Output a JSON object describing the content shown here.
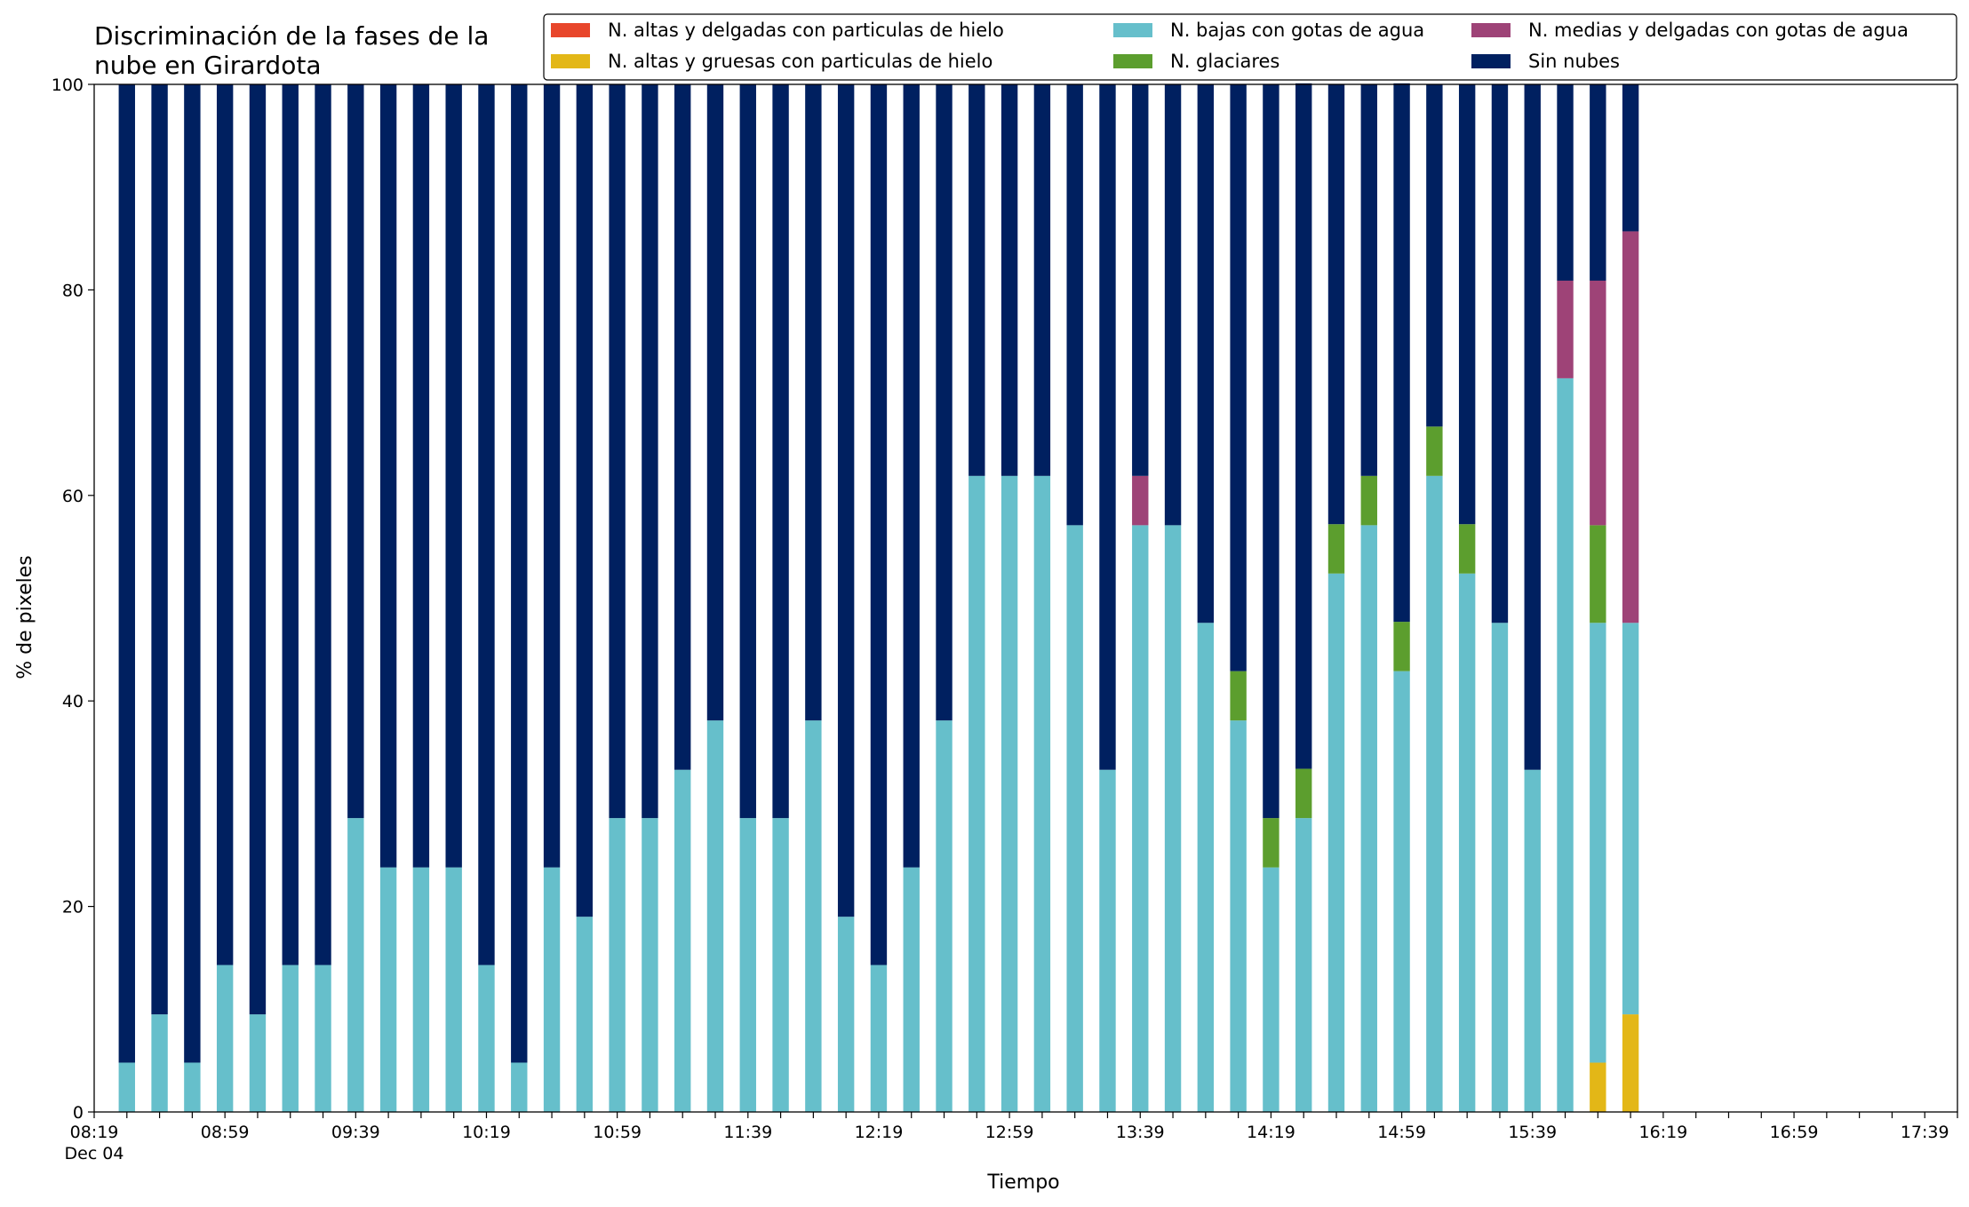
{
  "chart_data": {
    "type": "bar",
    "stacked": true,
    "title": "Discriminación de la fases de la nube en Girardota",
    "title_lines": [
      "Discriminación de la fases de la",
      "nube en Girardota"
    ],
    "xlabel": "Tiempo",
    "ylabel": "% de pixeles",
    "ylim": [
      0,
      100
    ],
    "yticks": [
      0,
      20,
      40,
      60,
      80,
      100
    ],
    "x_interval_minutes": 10,
    "x_axis_start": "08:19",
    "x_axis_end": "17:49",
    "xtick_labels": [
      "08:19",
      "08:59",
      "09:39",
      "10:19",
      "10:59",
      "11:39",
      "12:19",
      "12:59",
      "13:39",
      "14:19",
      "14:59",
      "15:39",
      "16:19",
      "16:59",
      "17:39"
    ],
    "xtick_date_label": "Dec 04",
    "x": [
      "08:29",
      "08:39",
      "08:49",
      "08:59",
      "09:09",
      "09:19",
      "09:29",
      "09:39",
      "09:49",
      "09:59",
      "10:09",
      "10:19",
      "10:29",
      "10:39",
      "10:49",
      "10:59",
      "11:09",
      "11:19",
      "11:29",
      "11:39",
      "11:49",
      "11:59",
      "12:09",
      "12:19",
      "12:29",
      "12:39",
      "12:49",
      "12:59",
      "13:09",
      "13:19",
      "13:29",
      "13:39",
      "13:49",
      "13:59",
      "14:09",
      "14:19",
      "14:29",
      "14:39",
      "14:49",
      "14:59",
      "15:09",
      "15:19",
      "15:29",
      "15:39",
      "15:49",
      "15:59",
      "16:09"
    ],
    "series": [
      {
        "name": "N. altas y delgadas con particulas de hielo",
        "color": "#e8462b",
        "values": [
          0,
          0,
          0,
          0,
          0,
          0,
          0,
          0,
          0,
          0,
          0,
          0,
          0,
          0,
          0,
          0,
          0,
          0,
          0,
          0,
          0,
          0,
          0,
          0,
          0,
          0,
          0,
          0,
          0,
          0,
          0,
          0,
          0,
          0,
          0,
          0,
          0,
          0,
          0,
          0,
          0,
          0,
          0,
          0,
          0,
          0,
          0
        ]
      },
      {
        "name": "N. altas y gruesas con particulas de hielo",
        "color": "#e3b717",
        "values": [
          0,
          0,
          0,
          0,
          0,
          0,
          0,
          0,
          0,
          0,
          0,
          0,
          0,
          0,
          0,
          0,
          0,
          0,
          0,
          0,
          0,
          0,
          0,
          0,
          0,
          0,
          0,
          0,
          0,
          0,
          0,
          0,
          0,
          0,
          0,
          0,
          0,
          0,
          0,
          0,
          0,
          0,
          0,
          0,
          0,
          4.8,
          9.5
        ]
      },
      {
        "name": "N. bajas con gotas de agua",
        "color": "#66bfcb",
        "values": [
          4.8,
          9.5,
          4.8,
          14.3,
          9.5,
          14.3,
          14.3,
          28.6,
          23.8,
          23.8,
          23.8,
          14.3,
          4.8,
          23.8,
          19,
          28.6,
          28.6,
          33.3,
          38.1,
          28.6,
          28.6,
          38.1,
          19,
          14.3,
          23.8,
          38.1,
          61.9,
          61.9,
          61.9,
          57.1,
          33.3,
          57.1,
          57.1,
          47.6,
          38.1,
          23.8,
          28.6,
          52.4,
          57.1,
          42.9,
          61.9,
          52.4,
          47.6,
          33.3,
          71.4,
          42.8,
          38.1
        ]
      },
      {
        "name": "N. glaciares",
        "color": "#5c9e2e",
        "values": [
          0,
          0,
          0,
          0,
          0,
          0,
          0,
          0,
          0,
          0,
          0,
          0,
          0,
          0,
          0,
          0,
          0,
          0,
          0,
          0,
          0,
          0,
          0,
          0,
          0,
          0,
          0,
          0,
          0,
          0,
          0,
          0,
          0,
          0,
          4.8,
          4.8,
          4.8,
          4.8,
          4.8,
          4.8,
          4.8,
          4.8,
          0,
          0,
          0,
          9.5,
          0
        ]
      },
      {
        "name": "N. medias y delgadas con gotas de agua",
        "color": "#9e4377",
        "values": [
          0,
          0,
          0,
          0,
          0,
          0,
          0,
          0,
          0,
          0,
          0,
          0,
          0,
          0,
          0,
          0,
          0,
          0,
          0,
          0,
          0,
          0,
          0,
          0,
          0,
          0,
          0,
          0,
          0,
          0,
          0,
          4.8,
          0,
          0,
          0,
          0,
          0,
          0,
          0,
          0,
          0,
          0,
          0,
          0,
          9.5,
          23.8,
          38.1
        ]
      },
      {
        "name": "Sin nubes",
        "color": "#002060",
        "values": [
          95.2,
          90.5,
          95.2,
          85.7,
          90.5,
          85.7,
          85.7,
          71.4,
          76.2,
          76.2,
          76.2,
          85.7,
          95.2,
          76.2,
          81,
          71.4,
          71.4,
          66.7,
          61.9,
          71.4,
          71.4,
          61.9,
          81,
          85.7,
          76.2,
          61.9,
          38.1,
          38.1,
          38.1,
          42.9,
          66.7,
          38.1,
          42.9,
          52.4,
          57.1,
          71.4,
          66.7,
          42.8,
          38.1,
          52.4,
          33.3,
          42.8,
          52.4,
          66.7,
          19.1,
          19.1,
          14.3
        ]
      }
    ],
    "legend_position": "top-right",
    "legend_columns": 3,
    "legend_order": [
      "N. altas y delgadas con particulas de hielo",
      "N. altas y gruesas con particulas de hielo",
      "N. bajas con gotas de agua",
      "N. glaciares",
      "N. medias y delgadas con gotas de agua",
      "Sin nubes"
    ],
    "grid": false
  }
}
